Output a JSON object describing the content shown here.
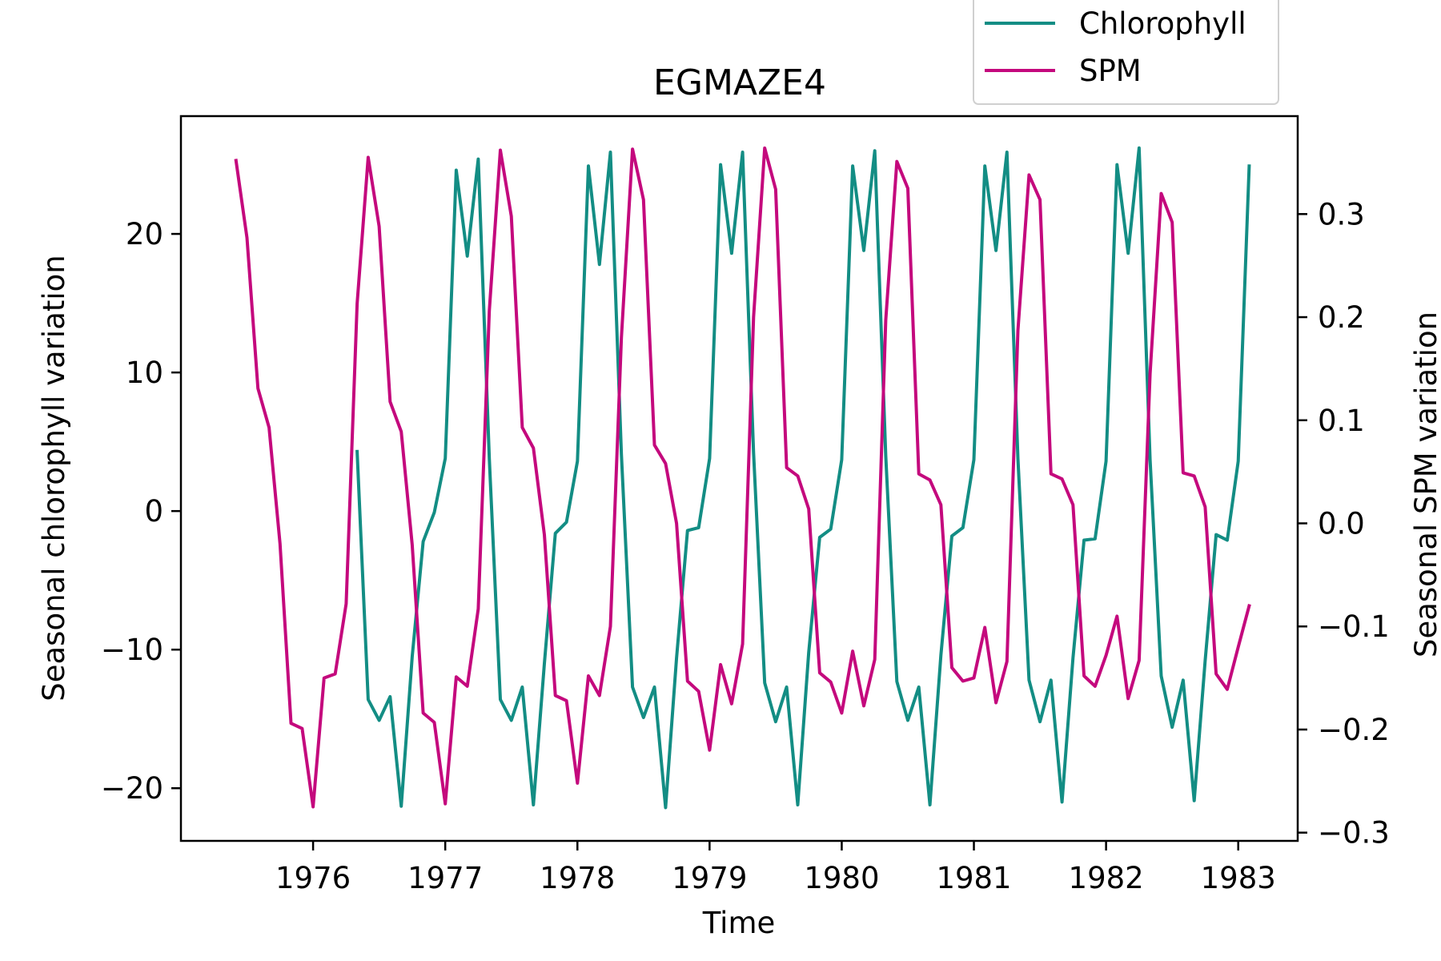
{
  "chart_data": {
    "type": "line",
    "title": "EGMAZE4",
    "xlabel": "Time",
    "ylabel_left": "Seasonal chlorophyll variation",
    "ylabel_right": "Seasonal SPM variation",
    "xlim": [
      1975.0,
      1983.45
    ],
    "ylim_left": [
      -23.8,
      28.5
    ],
    "ylim_right": [
      -0.308,
      0.395
    ],
    "x_ticks": [
      1976,
      1977,
      1978,
      1979,
      1980,
      1981,
      1982,
      1983
    ],
    "x_tick_labels": [
      "1976",
      "1977",
      "1978",
      "1979",
      "1980",
      "1981",
      "1982",
      "1983"
    ],
    "y_left_ticks": [
      -20,
      -10,
      0,
      10,
      20
    ],
    "y_left_tick_labels": [
      "−20",
      "−10",
      "0",
      "10",
      "20"
    ],
    "y_right_ticks": [
      -0.3,
      -0.2,
      -0.1,
      0.0,
      0.1,
      0.2,
      0.3
    ],
    "y_right_tick_labels": [
      "−0.3",
      "−0.2",
      "−0.1",
      "0.0",
      "0.1",
      "0.2",
      "0.3"
    ],
    "grid": false,
    "legend_position": "top-right, above plot",
    "series": [
      {
        "name": "Chlorophyll",
        "axis": "left",
        "color": "#138d84",
        "points": [
          [
            1976.333,
            4.3
          ],
          [
            1976.417,
            -13.6
          ],
          [
            1976.5,
            -15.1
          ],
          [
            1976.583,
            -13.4
          ],
          [
            1976.667,
            -21.3
          ],
          [
            1976.75,
            -10.5
          ],
          [
            1976.833,
            -2.2
          ],
          [
            1976.917,
            -0.1
          ],
          [
            1977.0,
            3.8
          ],
          [
            1977.083,
            24.6
          ],
          [
            1977.167,
            18.4
          ],
          [
            1977.25,
            25.4
          ],
          [
            1977.333,
            3.8
          ],
          [
            1977.417,
            -13.6
          ],
          [
            1977.5,
            -15.1
          ],
          [
            1977.583,
            -12.7
          ],
          [
            1977.667,
            -21.2
          ],
          [
            1977.75,
            -11.0
          ],
          [
            1977.833,
            -1.6
          ],
          [
            1977.917,
            -0.8
          ],
          [
            1978.0,
            3.6
          ],
          [
            1978.083,
            24.9
          ],
          [
            1978.167,
            17.8
          ],
          [
            1978.25,
            25.9
          ],
          [
            1978.333,
            4.1
          ],
          [
            1978.417,
            -12.7
          ],
          [
            1978.5,
            -14.9
          ],
          [
            1978.583,
            -12.7
          ],
          [
            1978.667,
            -21.4
          ],
          [
            1978.75,
            -10.6
          ],
          [
            1978.833,
            -1.4
          ],
          [
            1978.917,
            -1.2
          ],
          [
            1979.0,
            3.8
          ],
          [
            1979.083,
            25.0
          ],
          [
            1979.167,
            18.6
          ],
          [
            1979.25,
            25.9
          ],
          [
            1979.333,
            4.2
          ],
          [
            1979.417,
            -12.4
          ],
          [
            1979.5,
            -15.2
          ],
          [
            1979.583,
            -12.7
          ],
          [
            1979.667,
            -21.2
          ],
          [
            1979.75,
            -10.2
          ],
          [
            1979.833,
            -1.9
          ],
          [
            1979.917,
            -1.3
          ],
          [
            1980.0,
            3.7
          ],
          [
            1980.083,
            24.9
          ],
          [
            1980.167,
            18.8
          ],
          [
            1980.25,
            26.0
          ],
          [
            1980.333,
            4.0
          ],
          [
            1980.417,
            -12.3
          ],
          [
            1980.5,
            -15.1
          ],
          [
            1980.583,
            -12.7
          ],
          [
            1980.667,
            -21.2
          ],
          [
            1980.75,
            -10.4
          ],
          [
            1980.833,
            -1.8
          ],
          [
            1980.917,
            -1.2
          ],
          [
            1981.0,
            3.7
          ],
          [
            1981.083,
            24.9
          ],
          [
            1981.167,
            18.8
          ],
          [
            1981.25,
            25.9
          ],
          [
            1981.333,
            3.8
          ],
          [
            1981.417,
            -12.2
          ],
          [
            1981.5,
            -15.2
          ],
          [
            1981.583,
            -12.2
          ],
          [
            1981.667,
            -21.0
          ],
          [
            1981.75,
            -10.6
          ],
          [
            1981.833,
            -2.1
          ],
          [
            1981.917,
            -2.0
          ],
          [
            1982.0,
            3.6
          ],
          [
            1982.083,
            25.0
          ],
          [
            1982.167,
            18.6
          ],
          [
            1982.25,
            26.2
          ],
          [
            1982.333,
            3.7
          ],
          [
            1982.417,
            -11.9
          ],
          [
            1982.5,
            -15.6
          ],
          [
            1982.583,
            -12.2
          ],
          [
            1982.667,
            -20.9
          ],
          [
            1982.75,
            -10.8
          ],
          [
            1982.833,
            -1.7
          ],
          [
            1982.917,
            -2.1
          ],
          [
            1983.0,
            3.6
          ],
          [
            1983.083,
            24.9
          ]
        ]
      },
      {
        "name": "SPM",
        "axis": "right",
        "color": "#c4097d",
        "points": [
          [
            1975.417,
            0.352
          ],
          [
            1975.5,
            0.277
          ],
          [
            1975.583,
            0.131
          ],
          [
            1975.667,
            0.093
          ],
          [
            1975.75,
            -0.02
          ],
          [
            1975.833,
            -0.194
          ],
          [
            1975.917,
            -0.199
          ],
          [
            1976.0,
            -0.275
          ],
          [
            1976.083,
            -0.15
          ],
          [
            1976.167,
            -0.146
          ],
          [
            1976.25,
            -0.078
          ],
          [
            1976.333,
            0.213
          ],
          [
            1976.417,
            0.355
          ],
          [
            1976.5,
            0.288
          ],
          [
            1976.583,
            0.118
          ],
          [
            1976.667,
            0.089
          ],
          [
            1976.75,
            -0.021
          ],
          [
            1976.833,
            -0.184
          ],
          [
            1976.917,
            -0.193
          ],
          [
            1977.0,
            -0.272
          ],
          [
            1977.083,
            -0.149
          ],
          [
            1977.167,
            -0.158
          ],
          [
            1977.25,
            -0.083
          ],
          [
            1977.333,
            0.206
          ],
          [
            1977.417,
            0.362
          ],
          [
            1977.5,
            0.298
          ],
          [
            1977.583,
            0.093
          ],
          [
            1977.667,
            0.073
          ],
          [
            1977.75,
            -0.011
          ],
          [
            1977.833,
            -0.167
          ],
          [
            1977.917,
            -0.172
          ],
          [
            1978.0,
            -0.252
          ],
          [
            1978.083,
            -0.148
          ],
          [
            1978.167,
            -0.167
          ],
          [
            1978.25,
            -0.1
          ],
          [
            1978.333,
            0.18
          ],
          [
            1978.417,
            0.363
          ],
          [
            1978.5,
            0.314
          ],
          [
            1978.583,
            0.076
          ],
          [
            1978.667,
            0.058
          ],
          [
            1978.75,
            0.0
          ],
          [
            1978.833,
            -0.153
          ],
          [
            1978.917,
            -0.163
          ],
          [
            1979.0,
            -0.22
          ],
          [
            1979.083,
            -0.137
          ],
          [
            1979.167,
            -0.175
          ],
          [
            1979.25,
            -0.117
          ],
          [
            1979.333,
            0.2
          ],
          [
            1979.417,
            0.364
          ],
          [
            1979.5,
            0.324
          ],
          [
            1979.583,
            0.054
          ],
          [
            1979.667,
            0.046
          ],
          [
            1979.75,
            0.014
          ],
          [
            1979.833,
            -0.145
          ],
          [
            1979.917,
            -0.154
          ],
          [
            1980.0,
            -0.184
          ],
          [
            1980.083,
            -0.124
          ],
          [
            1980.167,
            -0.177
          ],
          [
            1980.25,
            -0.132
          ],
          [
            1980.333,
            0.197
          ],
          [
            1980.417,
            0.351
          ],
          [
            1980.5,
            0.325
          ],
          [
            1980.583,
            0.048
          ],
          [
            1980.667,
            0.042
          ],
          [
            1980.75,
            0.018
          ],
          [
            1980.833,
            -0.14
          ],
          [
            1980.917,
            -0.153
          ],
          [
            1981.0,
            -0.15
          ],
          [
            1981.083,
            -0.101
          ],
          [
            1981.167,
            -0.174
          ],
          [
            1981.25,
            -0.134
          ],
          [
            1981.333,
            0.187
          ],
          [
            1981.417,
            0.338
          ],
          [
            1981.5,
            0.314
          ],
          [
            1981.583,
            0.048
          ],
          [
            1981.667,
            0.043
          ],
          [
            1981.75,
            0.018
          ],
          [
            1981.833,
            -0.148
          ],
          [
            1981.917,
            -0.158
          ],
          [
            1982.0,
            -0.128
          ],
          [
            1982.083,
            -0.09
          ],
          [
            1982.167,
            -0.17
          ],
          [
            1982.25,
            -0.133
          ],
          [
            1982.333,
            0.145
          ],
          [
            1982.417,
            0.32
          ],
          [
            1982.5,
            0.292
          ],
          [
            1982.583,
            0.049
          ],
          [
            1982.667,
            0.046
          ],
          [
            1982.75,
            0.016
          ],
          [
            1982.833,
            -0.146
          ],
          [
            1982.917,
            -0.161
          ],
          [
            1983.0,
            -0.12
          ],
          [
            1983.083,
            -0.08
          ]
        ]
      }
    ]
  }
}
